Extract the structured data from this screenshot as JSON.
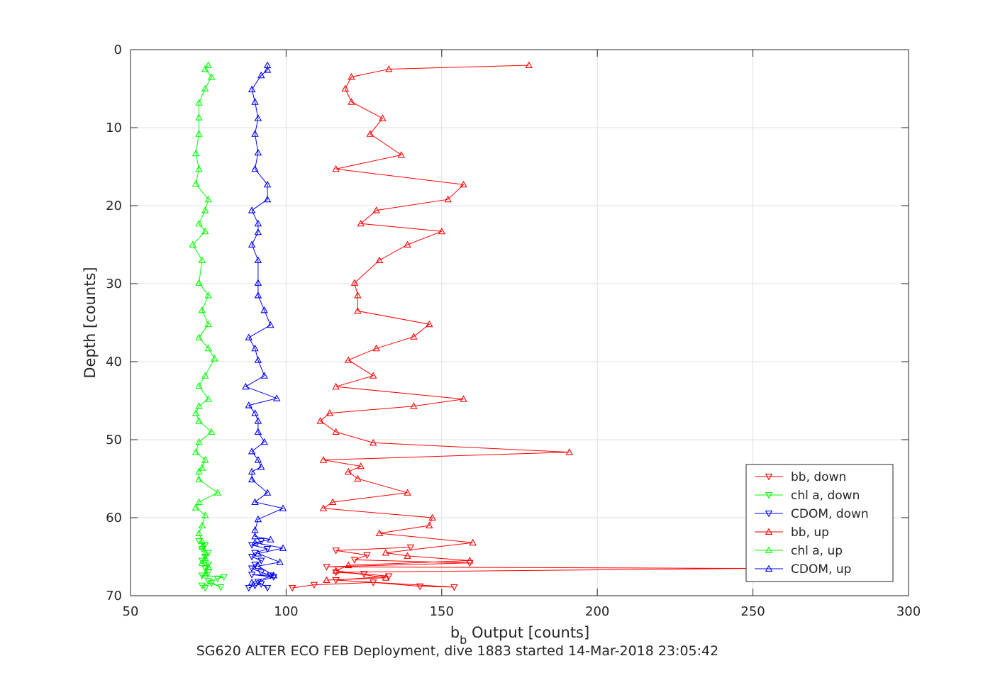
{
  "chart_data": {
    "type": "line",
    "xlabel_main": "b",
    "xlabel_sub": "b",
    "xlabel_rest": " Output [counts]",
    "ylabel": "Depth [counts]",
    "subtitle": "SG620 ALTER ECO FEB Deployment, dive 1883 started 14-Mar-2018 23:05:42",
    "xlim": [
      50,
      300
    ],
    "ylim": [
      0,
      70
    ],
    "y_reversed": true,
    "grid": true,
    "legend_position": "bottom-right",
    "x_ticks": [
      50,
      100,
      150,
      200,
      250,
      300
    ],
    "y_ticks": [
      0,
      10,
      20,
      30,
      40,
      50,
      60,
      70
    ],
    "x_tick_labels": [
      "50",
      "100",
      "150",
      "200",
      "250",
      "300"
    ],
    "y_tick_labels": [
      "0",
      "10",
      "20",
      "30",
      "40",
      "50",
      "60",
      "70"
    ],
    "series": [
      {
        "name": "bb, down",
        "color": "#ff0000",
        "marker": "triangle-down",
        "points": [
          [
            102,
            69
          ],
          [
            109,
            68.6
          ],
          [
            128,
            68.3
          ],
          [
            143,
            68.8
          ],
          [
            154,
            68.9
          ],
          [
            116,
            68.0
          ],
          [
            133,
            67.5
          ],
          [
            125,
            67.2
          ],
          [
            116,
            67.0
          ],
          [
            250,
            66.5
          ],
          [
            113,
            66.3
          ],
          [
            159,
            65.8
          ],
          [
            122,
            65.4
          ],
          [
            126,
            64.8
          ],
          [
            116,
            64.2
          ],
          [
            140,
            63.8
          ]
        ]
      },
      {
        "name": "chl a, down",
        "color": "#00ff00",
        "marker": "triangle-down",
        "points": [
          [
            74,
            69
          ],
          [
            73,
            68.7
          ],
          [
            76,
            68.4
          ],
          [
            79,
            68.9
          ],
          [
            75,
            68.1
          ],
          [
            78,
            67.8
          ],
          [
            80,
            67.6
          ],
          [
            73,
            67.4
          ],
          [
            75,
            67.0
          ],
          [
            74,
            66.5
          ],
          [
            75,
            66.0
          ],
          [
            73,
            65.5
          ],
          [
            74,
            65.0
          ],
          [
            75,
            64.5
          ],
          [
            73,
            64.0
          ],
          [
            74,
            63.5
          ],
          [
            72,
            63.0
          ]
        ]
      },
      {
        "name": "CDOM, down",
        "color": "#0000ff",
        "marker": "triangle-down",
        "points": [
          [
            88,
            69
          ],
          [
            90,
            68.7
          ],
          [
            92,
            68.5
          ],
          [
            94,
            69
          ],
          [
            91,
            68.2
          ],
          [
            96,
            67.6
          ],
          [
            89,
            67.3
          ],
          [
            95,
            67.4
          ],
          [
            92,
            67.0
          ],
          [
            89,
            66.5
          ],
          [
            90,
            66.0
          ],
          [
            92,
            65.5
          ],
          [
            89,
            65.0
          ],
          [
            90,
            64.5
          ],
          [
            94,
            64.0
          ],
          [
            89,
            63.5
          ],
          [
            92,
            63.0
          ]
        ]
      },
      {
        "name": "bb, up",
        "color": "#ff0000",
        "marker": "triangle-up",
        "points": [
          [
            178,
            2.0
          ],
          [
            133,
            2.5
          ],
          [
            121,
            3.5
          ],
          [
            119,
            5.0
          ],
          [
            121,
            6.7
          ],
          [
            131,
            8.8
          ],
          [
            127,
            10.8
          ],
          [
            137,
            13.5
          ],
          [
            116,
            15.3
          ],
          [
            157,
            17.3
          ],
          [
            152,
            19.2
          ],
          [
            129,
            20.6
          ],
          [
            124,
            22.3
          ],
          [
            150,
            23.3
          ],
          [
            139,
            25.0
          ],
          [
            130,
            27.0
          ],
          [
            122,
            29.9
          ],
          [
            123,
            31.5
          ],
          [
            123,
            33.5
          ],
          [
            146,
            35.2
          ],
          [
            141,
            36.8
          ],
          [
            129,
            38.3
          ],
          [
            120,
            39.8
          ],
          [
            128,
            41.8
          ],
          [
            116,
            43.2
          ],
          [
            157,
            44.8
          ],
          [
            141,
            45.7
          ],
          [
            114,
            46.6
          ],
          [
            111,
            47.6
          ],
          [
            116,
            49.0
          ],
          [
            128,
            50.4
          ],
          [
            191,
            51.6
          ],
          [
            112,
            52.6
          ],
          [
            124,
            53.4
          ],
          [
            120,
            54.1
          ],
          [
            123,
            55.0
          ],
          [
            139,
            56.8
          ],
          [
            115,
            58.0
          ],
          [
            112,
            58.8
          ],
          [
            147,
            60.0
          ],
          [
            146,
            61.0
          ],
          [
            130,
            62.0
          ],
          [
            160,
            63.2
          ],
          [
            132,
            64.5
          ],
          [
            139,
            64.9
          ],
          [
            159,
            65.5
          ],
          [
            120,
            66.1
          ],
          [
            116,
            66.8
          ],
          [
            132,
            67.7
          ],
          [
            113,
            68.0
          ]
        ]
      },
      {
        "name": "chl a, up",
        "color": "#00ff00",
        "marker": "triangle-up",
        "points": [
          [
            75,
            2.0
          ],
          [
            74,
            2.5
          ],
          [
            76,
            3.5
          ],
          [
            74,
            5.0
          ],
          [
            72,
            6.8
          ],
          [
            72,
            8.7
          ],
          [
            72,
            10.8
          ],
          [
            71,
            13.3
          ],
          [
            72,
            15.3
          ],
          [
            71,
            17.2
          ],
          [
            75,
            19.2
          ],
          [
            74,
            20.6
          ],
          [
            72,
            22.3
          ],
          [
            74,
            23.3
          ],
          [
            70,
            25.0
          ],
          [
            73,
            27.0
          ],
          [
            72,
            29.9
          ],
          [
            75,
            31.5
          ],
          [
            73,
            33.4
          ],
          [
            75,
            35.2
          ],
          [
            72,
            36.9
          ],
          [
            75,
            38.3
          ],
          [
            77,
            39.6
          ],
          [
            74,
            41.8
          ],
          [
            72,
            43.1
          ],
          [
            75,
            44.8
          ],
          [
            72,
            45.7
          ],
          [
            71,
            46.6
          ],
          [
            72,
            47.6
          ],
          [
            76,
            49.0
          ],
          [
            72,
            50.3
          ],
          [
            71,
            51.6
          ],
          [
            74,
            52.6
          ],
          [
            73,
            53.6
          ],
          [
            72,
            54.1
          ],
          [
            72,
            55.1
          ],
          [
            78,
            56.8
          ],
          [
            72,
            58.0
          ],
          [
            71,
            58.7
          ],
          [
            74,
            59.7
          ],
          [
            73,
            61.0
          ],
          [
            72,
            62.0
          ],
          [
            73,
            63.0
          ],
          [
            73,
            63.7
          ],
          [
            74,
            64.5
          ],
          [
            74,
            65.2
          ],
          [
            73,
            65.8
          ],
          [
            75,
            66.3
          ],
          [
            74,
            67.3
          ]
        ]
      },
      {
        "name": "CDOM, up",
        "color": "#0000ff",
        "marker": "triangle-up",
        "points": [
          [
            94,
            2.0
          ],
          [
            94,
            2.6
          ],
          [
            92,
            3.3
          ],
          [
            89,
            5.1
          ],
          [
            90,
            6.7
          ],
          [
            91,
            8.8
          ],
          [
            90,
            10.8
          ],
          [
            91,
            13.2
          ],
          [
            90,
            15.3
          ],
          [
            94,
            17.3
          ],
          [
            94,
            19.2
          ],
          [
            89,
            20.6
          ],
          [
            91,
            22.3
          ],
          [
            91,
            23.4
          ],
          [
            89,
            25.0
          ],
          [
            91,
            27.0
          ],
          [
            91,
            29.9
          ],
          [
            91,
            31.5
          ],
          [
            93,
            33.4
          ],
          [
            95,
            35.3
          ],
          [
            88,
            36.9
          ],
          [
            90,
            38.3
          ],
          [
            91,
            39.8
          ],
          [
            93,
            41.8
          ],
          [
            87,
            43.2
          ],
          [
            97,
            44.7
          ],
          [
            88,
            45.6
          ],
          [
            90,
            46.6
          ],
          [
            91,
            47.6
          ],
          [
            91,
            49.0
          ],
          [
            93,
            50.3
          ],
          [
            89,
            51.5
          ],
          [
            91,
            52.6
          ],
          [
            92,
            53.5
          ],
          [
            89,
            54.1
          ],
          [
            89,
            55.1
          ],
          [
            94,
            56.8
          ],
          [
            90,
            58.0
          ],
          [
            99,
            58.8
          ],
          [
            91,
            60.2
          ],
          [
            90,
            61.6
          ],
          [
            90,
            62.4
          ],
          [
            95,
            62.8
          ],
          [
            90,
            63.2
          ],
          [
            99,
            63.9
          ],
          [
            91,
            64.6
          ],
          [
            98,
            65.7
          ],
          [
            91,
            66.2
          ],
          [
            96,
            67.4
          ],
          [
            89,
            68.3
          ]
        ]
      }
    ]
  }
}
